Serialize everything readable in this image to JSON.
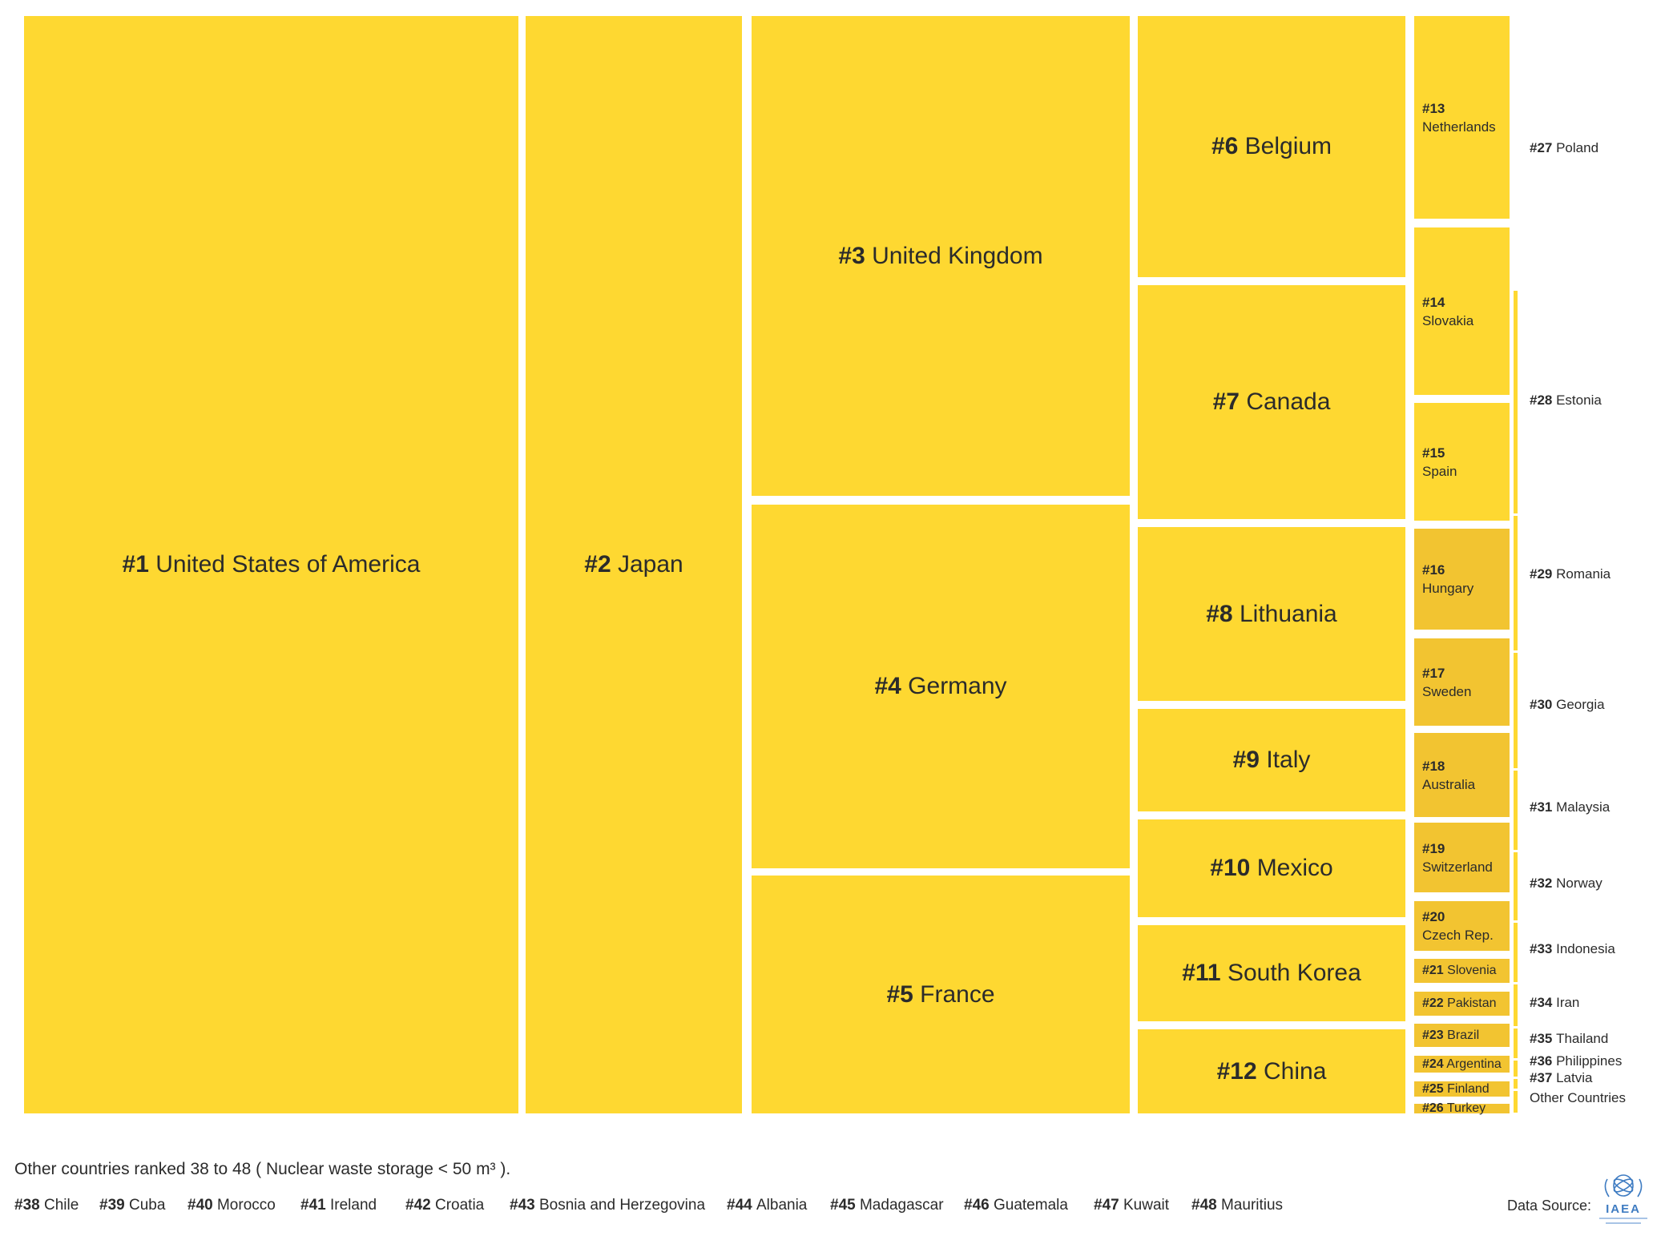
{
  "chart_data": {
    "type": "treemap",
    "tiles": [
      {
        "rank": "#1",
        "name": "United States of America",
        "size": "big",
        "shade": "normal"
      },
      {
        "rank": "#2",
        "name": "Japan",
        "size": "big",
        "shade": "normal"
      },
      {
        "rank": "#3",
        "name": "United Kingdom",
        "size": "big",
        "shade": "normal"
      },
      {
        "rank": "#4",
        "name": "Germany",
        "size": "big",
        "shade": "normal"
      },
      {
        "rank": "#5",
        "name": "France",
        "size": "big",
        "shade": "normal"
      },
      {
        "rank": "#6",
        "name": "Belgium",
        "size": "big",
        "shade": "normal"
      },
      {
        "rank": "#7",
        "name": "Canada",
        "size": "big",
        "shade": "normal"
      },
      {
        "rank": "#8",
        "name": "Lithuania",
        "size": "big",
        "shade": "normal"
      },
      {
        "rank": "#9",
        "name": "Italy",
        "size": "big",
        "shade": "normal"
      },
      {
        "rank": "#10",
        "name": "Mexico",
        "size": "big",
        "shade": "normal"
      },
      {
        "rank": "#11",
        "name": "South Korea",
        "size": "big",
        "shade": "normal"
      },
      {
        "rank": "#12",
        "name": "China",
        "size": "big",
        "shade": "normal"
      },
      {
        "rank": "#13",
        "name": "Netherlands",
        "size": "small",
        "shade": "normal"
      },
      {
        "rank": "#14",
        "name": "Slovakia",
        "size": "small",
        "shade": "normal"
      },
      {
        "rank": "#15",
        "name": "Spain",
        "size": "small",
        "shade": "normal"
      },
      {
        "rank": "#16",
        "name": "Hungary",
        "size": "small",
        "shade": "dark"
      },
      {
        "rank": "#17",
        "name": "Sweden",
        "size": "small",
        "shade": "dark"
      },
      {
        "rank": "#18",
        "name": "Australia",
        "size": "small",
        "shade": "dark"
      },
      {
        "rank": "#19",
        "name": "Switzerland",
        "size": "small",
        "shade": "dark"
      },
      {
        "rank": "#20",
        "name": "Czech Rep.",
        "size": "small",
        "shade": "dark"
      },
      {
        "rank": "#21",
        "name": "Slovenia",
        "size": "tiny",
        "shade": "dark"
      },
      {
        "rank": "#22",
        "name": "Pakistan",
        "size": "tiny",
        "shade": "dark"
      },
      {
        "rank": "#23",
        "name": "Brazil",
        "size": "tiny",
        "shade": "dark"
      },
      {
        "rank": "#24",
        "name": "Argentina",
        "size": "tiny",
        "shade": "dark"
      },
      {
        "rank": "#25",
        "name": "Finland",
        "size": "tiny",
        "shade": "dark"
      },
      {
        "rank": "#26",
        "name": "Turkey",
        "size": "tiny",
        "shade": "dark"
      }
    ],
    "side_labels": [
      {
        "rank": "#27",
        "name": "Poland"
      },
      {
        "rank": "#28",
        "name": "Estonia"
      },
      {
        "rank": "#29",
        "name": "Romania"
      },
      {
        "rank": "#30",
        "name": "Georgia"
      },
      {
        "rank": "#31",
        "name": "Malaysia"
      },
      {
        "rank": "#32",
        "name": "Norway"
      },
      {
        "rank": "#33",
        "name": "Indonesia"
      },
      {
        "rank": "#34",
        "name": "Iran"
      },
      {
        "rank": "#35",
        "name": "Thailand"
      },
      {
        "rank": "#36",
        "name": "Philippines"
      },
      {
        "rank": "#37",
        "name": "Latvia"
      },
      {
        "rank": "",
        "name": "Other Countries"
      }
    ],
    "colors": {
      "tile": "#fed831",
      "tile_dark": "#f2c431",
      "text": "#2b2b2b"
    }
  },
  "footer": {
    "others_title": "Other countries ranked 38 to 48 ( Nuclear waste storage < 50 m³ ).",
    "others": [
      {
        "rank": "#38",
        "name": "Chile"
      },
      {
        "rank": "#39",
        "name": "Cuba"
      },
      {
        "rank": "#40",
        "name": "Morocco"
      },
      {
        "rank": "#41",
        "name": "Ireland"
      },
      {
        "rank": "#42",
        "name": "Croatia"
      },
      {
        "rank": "#43",
        "name": "Bosnia and Herzegovina"
      },
      {
        "rank": "#44",
        "name": "Albania"
      },
      {
        "rank": "#45",
        "name": "Madagascar"
      },
      {
        "rank": "#46",
        "name": "Guatemala"
      },
      {
        "rank": "#47",
        "name": "Kuwait"
      },
      {
        "rank": "#48",
        "name": "Mauritius"
      }
    ],
    "source_label": "Data Source:",
    "logo_text": "IAEA"
  }
}
